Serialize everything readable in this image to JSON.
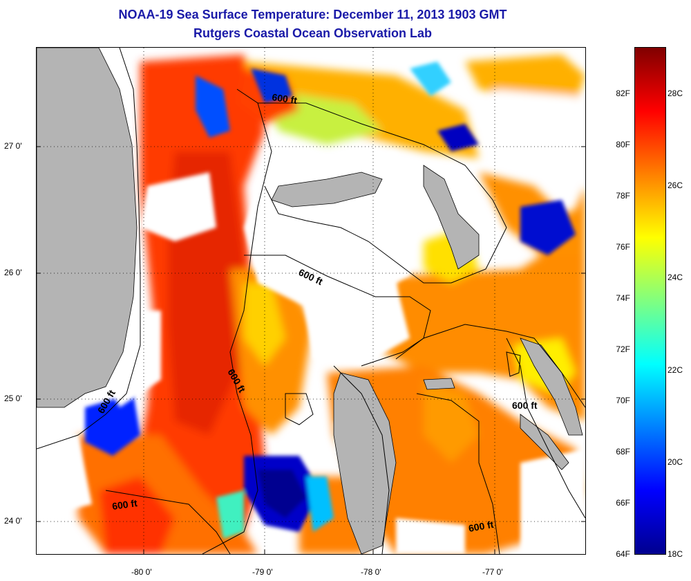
{
  "title": {
    "line1": "NOAA-19 Sea Surface Temperature:  December 11, 2013 1903 GMT",
    "line2": "Rutgers Coastal Ocean Observation Lab"
  },
  "map": {
    "latitude_labels": [
      "27 0'",
      "26 0'",
      "25 0'",
      "24 0'"
    ],
    "longitude_labels": [
      "-80 0'",
      "-79 0'",
      "-78 0'",
      "-77 0'"
    ],
    "contour_label": "600 ft",
    "colors": {
      "land": "#b4b4b4",
      "cloud": "#ffffff",
      "contour": "#000000",
      "grid": "#000000"
    }
  },
  "colorbar": {
    "fahrenheit_labels": [
      "82F",
      "80F",
      "78F",
      "76F",
      "74F",
      "72F",
      "70F",
      "68F",
      "66F",
      "64F"
    ],
    "celsius_labels": [
      "28C",
      "26C",
      "24C",
      "22C",
      "20C",
      "18C"
    ],
    "colors": [
      "#00008f",
      "#0000ff",
      "#0080ff",
      "#00ffff",
      "#80ff80",
      "#ffff00",
      "#ff8000",
      "#ff0000",
      "#800000"
    ]
  }
}
